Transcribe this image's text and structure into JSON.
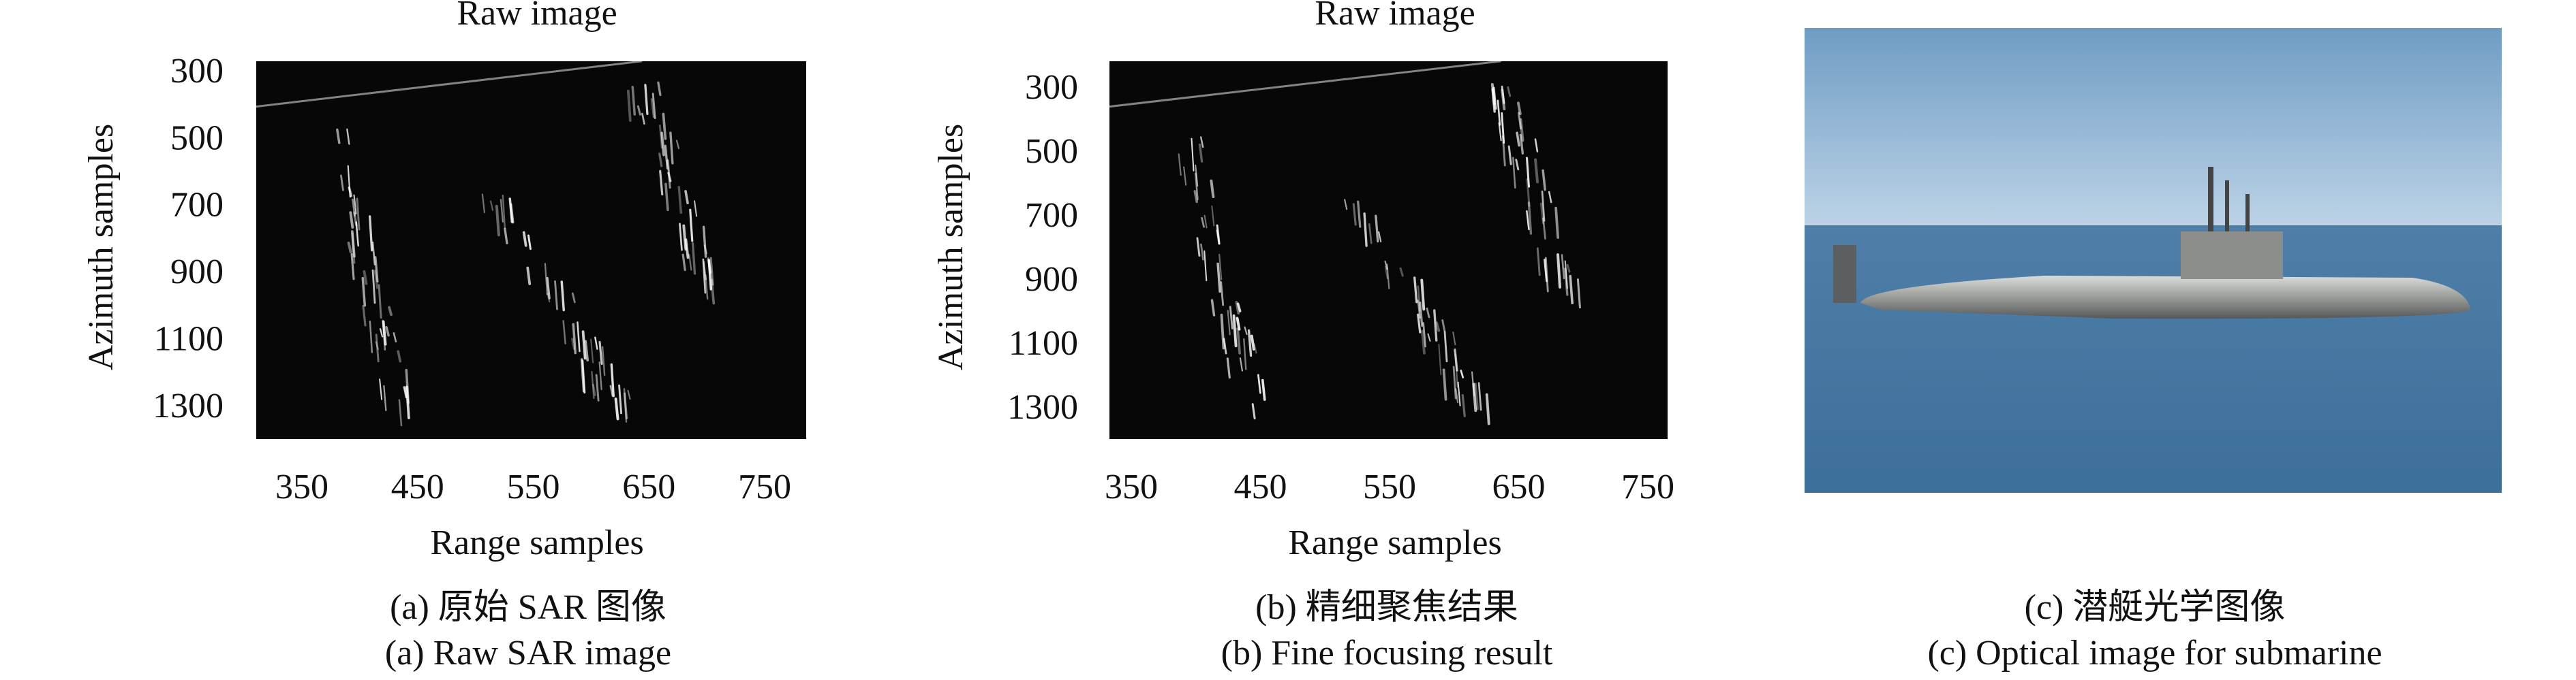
{
  "panels": [
    {
      "title": "Raw image",
      "ylabel": "Azimuth samples",
      "xlabel": "Range samples",
      "yticks": [
        "300",
        "500",
        "700",
        "900",
        "1100",
        "1300"
      ],
      "xticks": [
        "350",
        "450",
        "550",
        "650",
        "750"
      ],
      "caption_cn": "(a) 原始 SAR 图像",
      "caption_en": "(a) Raw SAR image"
    },
    {
      "title": "Raw image",
      "ylabel": "Azimuth samples",
      "xlabel": "Range samples",
      "yticks": [
        "300",
        "500",
        "700",
        "900",
        "1100",
        "1300"
      ],
      "xticks": [
        "350",
        "450",
        "550",
        "650",
        "750"
      ],
      "caption_cn": "(b) 精细聚焦结果",
      "caption_en": "(b) Fine focusing result"
    },
    {
      "caption_cn": "(c) 潜艇光学图像",
      "caption_en": "(c) Optical image for submarine"
    }
  ]
}
